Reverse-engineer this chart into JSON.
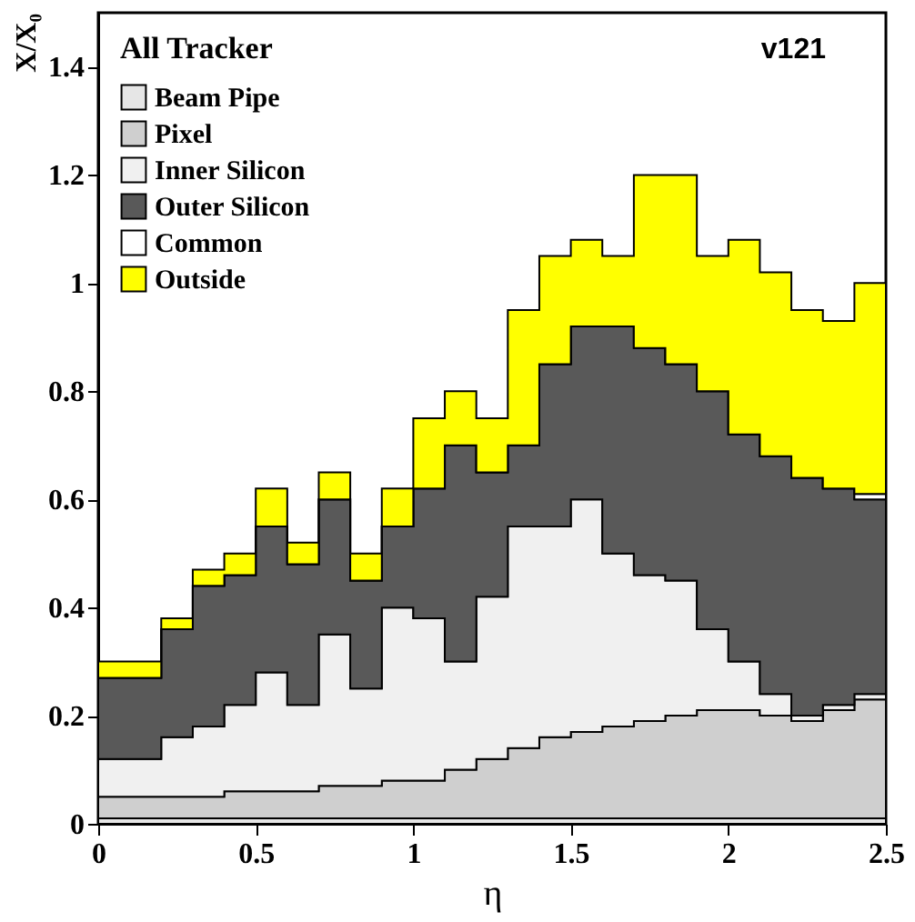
{
  "chart_data": {
    "type": "area",
    "stacked": true,
    "ylabel": "X/X₀",
    "xlabel": "η",
    "legend_title": "All Tracker",
    "annotations": [
      "v121"
    ],
    "x": [
      0,
      0.1,
      0.2,
      0.3,
      0.4,
      0.5,
      0.6,
      0.7,
      0.8,
      0.9,
      1.0,
      1.1,
      1.2,
      1.3,
      1.4,
      1.5,
      1.6,
      1.7,
      1.8,
      1.9,
      2.0,
      2.1,
      2.2,
      2.3,
      2.4,
      2.5
    ],
    "series": [
      {
        "name": "Beam Pipe",
        "color": "#e6e6e6",
        "values": [
          0.01,
          0.01,
          0.01,
          0.01,
          0.01,
          0.01,
          0.01,
          0.01,
          0.01,
          0.01,
          0.01,
          0.01,
          0.01,
          0.01,
          0.01,
          0.01,
          0.01,
          0.01,
          0.01,
          0.01,
          0.01,
          0.01,
          0.01,
          0.01,
          0.01,
          0.01
        ]
      },
      {
        "name": "Pixel",
        "color": "#cfcfcf",
        "values": [
          0.04,
          0.04,
          0.04,
          0.04,
          0.05,
          0.05,
          0.05,
          0.06,
          0.06,
          0.07,
          0.07,
          0.09,
          0.11,
          0.13,
          0.15,
          0.16,
          0.17,
          0.18,
          0.19,
          0.2,
          0.2,
          0.19,
          0.18,
          0.2,
          0.22,
          0.19
        ]
      },
      {
        "name": "Inner Silicon",
        "color": "#f0f0f0",
        "values": [
          0.07,
          0.07,
          0.11,
          0.13,
          0.16,
          0.22,
          0.16,
          0.28,
          0.18,
          0.32,
          0.3,
          0.2,
          0.3,
          0.41,
          0.39,
          0.43,
          0.32,
          0.27,
          0.25,
          0.15,
          0.09,
          0.04,
          0.01,
          0.01,
          0.01,
          0.01
        ]
      },
      {
        "name": "Outer Silicon",
        "color": "#595959",
        "values": [
          0.15,
          0.15,
          0.2,
          0.26,
          0.24,
          0.27,
          0.26,
          0.25,
          0.2,
          0.15,
          0.24,
          0.4,
          0.23,
          0.15,
          0.3,
          0.32,
          0.42,
          0.42,
          0.4,
          0.44,
          0.42,
          0.44,
          0.44,
          0.4,
          0.36,
          0.34
        ]
      },
      {
        "name": "Common",
        "color": "#ffffff",
        "values": [
          0,
          0,
          0,
          0,
          0,
          0,
          0,
          0,
          0,
          0,
          0,
          0,
          0,
          0,
          0,
          0,
          0,
          0,
          0,
          0,
          0,
          0,
          0,
          0,
          0.01,
          0.01
        ]
      },
      {
        "name": "Outside",
        "color": "#ffff00",
        "values": [
          0.03,
          0.03,
          0.02,
          0.03,
          0.04,
          0.07,
          0.04,
          0.05,
          0.05,
          0.07,
          0.13,
          0.1,
          0.1,
          0.25,
          0.2,
          0.16,
          0.13,
          0.32,
          0.35,
          0.25,
          0.36,
          0.34,
          0.31,
          0.31,
          0.39,
          0.29
        ]
      }
    ],
    "xlim": [
      0,
      2.5
    ],
    "ylim": [
      0,
      1.5
    ],
    "xticks": [
      0,
      0.5,
      1,
      1.5,
      2,
      2.5
    ],
    "yticks": [
      0,
      0.2,
      0.4,
      0.6,
      0.8,
      1,
      1.2,
      1.4
    ],
    "grid": false,
    "legend": "top left"
  }
}
